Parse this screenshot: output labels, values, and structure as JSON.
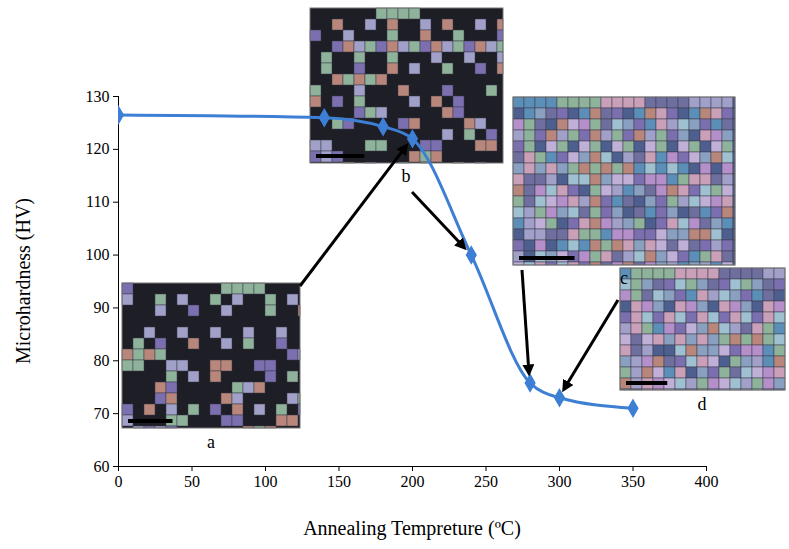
{
  "chart_data": {
    "type": "line",
    "x": [
      0,
      140,
      180,
      200,
      240,
      280,
      300,
      350
    ],
    "values": [
      126.5,
      126,
      124.3,
      122,
      100,
      75.8,
      73,
      71
    ],
    "color": "#3d7fd4",
    "marker": "diamond",
    "xlabel": "Annealing Tempreture (ºC)",
    "ylabel": "Microhardness (HV)",
    "xlim": [
      0,
      400
    ],
    "ylim": [
      60,
      130
    ],
    "xticks": [
      0,
      50,
      100,
      150,
      200,
      250,
      300,
      350,
      400
    ],
    "yticks": [
      60,
      70,
      80,
      90,
      100,
      110,
      120,
      130
    ],
    "grid": false,
    "annotations": [
      {
        "text": "a",
        "x": 200
      },
      {
        "text": "b",
        "x": 240
      },
      {
        "text": "c",
        "x": 280
      },
      {
        "text": "d",
        "x": 300
      }
    ]
  }
}
